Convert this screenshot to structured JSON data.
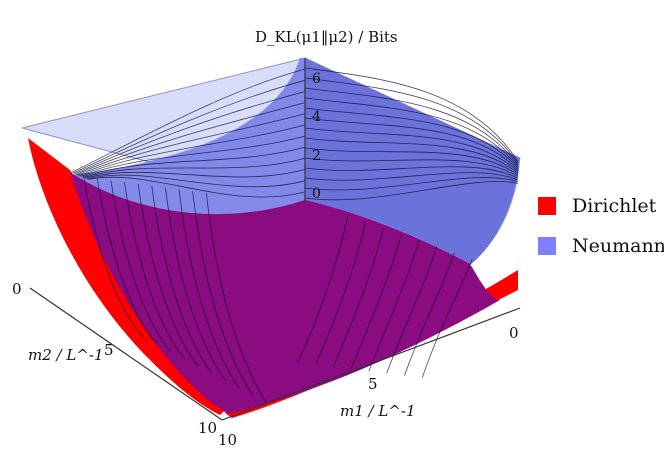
{
  "chart_data": {
    "type": "surface3d",
    "title": "D_KL(μ1‖μ2) / Bits",
    "xlabel": "m1 / L^-1",
    "ylabel": "m2 / L^-1",
    "zlabel": "D_KL(μ1‖μ2) / Bits",
    "x_range": [
      0,
      10
    ],
    "y_range": [
      0,
      10
    ],
    "z_ticks": [
      "0",
      "2",
      "4",
      "6"
    ],
    "x_ticks": [
      "0",
      "5",
      "10"
    ],
    "y_ticks": [
      "0",
      "5",
      "10"
    ],
    "series": [
      {
        "name": "Dirichlet",
        "color": "#ff0000"
      },
      {
        "name": "Neumann",
        "color": "#8080ff"
      }
    ],
    "colors": {
      "overlap": "#8a0c80",
      "neumann_top": "#d8dcf8",
      "mesh": "#0a0a2a"
    }
  }
}
